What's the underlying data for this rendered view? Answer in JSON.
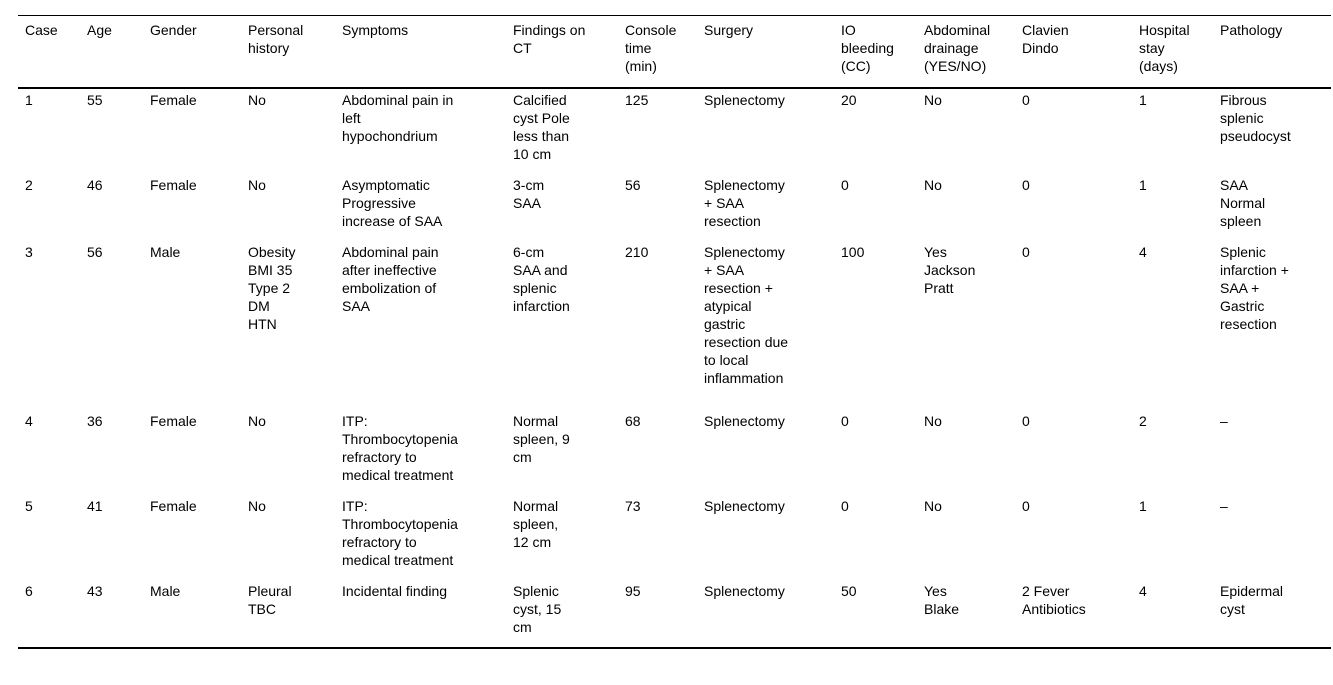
{
  "table": {
    "columns": [
      {
        "key": "case",
        "label_lines": [
          "Case"
        ]
      },
      {
        "key": "age",
        "label_lines": [
          "Age"
        ]
      },
      {
        "key": "gender",
        "label_lines": [
          "Gender"
        ]
      },
      {
        "key": "personal-history",
        "label_lines": [
          "Personal",
          "history"
        ]
      },
      {
        "key": "symptoms",
        "label_lines": [
          "Symptoms"
        ]
      },
      {
        "key": "findings-on-ct",
        "label_lines": [
          "Findings on",
          "CT"
        ]
      },
      {
        "key": "console-time",
        "label_lines": [
          "Console",
          "time",
          "(min)"
        ]
      },
      {
        "key": "surgery",
        "label_lines": [
          "Surgery"
        ]
      },
      {
        "key": "io-bleeding",
        "label_lines": [
          "IO",
          "bleeding",
          "(CC)"
        ]
      },
      {
        "key": "abdominal-drainage",
        "label_lines": [
          "Abdominal",
          "drainage",
          "(YES/NO)"
        ]
      },
      {
        "key": "clavien-dindo",
        "label_lines": [
          "Clavien",
          "Dindo"
        ]
      },
      {
        "key": "hospital-stay",
        "label_lines": [
          "Hospital",
          "stay",
          "(days)"
        ]
      },
      {
        "key": "pathology",
        "label_lines": [
          "Pathology"
        ]
      }
    ],
    "rows": [
      {
        "cells": [
          [
            "1"
          ],
          [
            "55"
          ],
          [
            "Female"
          ],
          [
            "No"
          ],
          [
            "Abdominal pain in",
            "left",
            "hypochondrium"
          ],
          [
            "Calcified",
            "cyst Pole",
            "less than",
            "10 cm"
          ],
          [
            "125"
          ],
          [
            "Splenectomy"
          ],
          [
            "20"
          ],
          [
            "No"
          ],
          [
            "0"
          ],
          [
            "1"
          ],
          [
            "Fibrous",
            "splenic",
            "pseudocyst"
          ]
        ]
      },
      {
        "cells": [
          [
            "2"
          ],
          [
            "46"
          ],
          [
            "Female"
          ],
          [
            "No"
          ],
          [
            "Asymptomatic",
            "Progressive",
            "increase of SAA"
          ],
          [
            "3-cm",
            "SAA"
          ],
          [
            "56"
          ],
          [
            "Splenectomy",
            "+ SAA",
            "resection"
          ],
          [
            "0"
          ],
          [
            "No"
          ],
          [
            "0"
          ],
          [
            "1"
          ],
          [
            "SAA",
            "Normal",
            "spleen"
          ]
        ]
      },
      {
        "cells": [
          [
            "3"
          ],
          [
            "56"
          ],
          [
            "Male"
          ],
          [
            "Obesity",
            "BMI 35",
            "Type 2",
            "DM",
            "HTN"
          ],
          [
            "Abdominal pain",
            "after ineffective",
            "embolization of",
            "SAA"
          ],
          [
            "6-cm",
            "SAA and",
            "splenic",
            "infarction"
          ],
          [
            "210"
          ],
          [
            "Splenectomy",
            "+ SAA",
            "resection +",
            "atypical",
            "gastric",
            "resection due",
            "to local",
            "inflammation"
          ],
          [
            "100"
          ],
          [
            "Yes",
            "Jackson",
            "Pratt"
          ],
          [
            "0"
          ],
          [
            "4"
          ],
          [
            "Splenic",
            "infarction +",
            "SAA +",
            "Gastric",
            "resection"
          ]
        ]
      },
      {
        "cells": [
          [
            "4"
          ],
          [
            "36"
          ],
          [
            "Female"
          ],
          [
            "No"
          ],
          [
            "ITP:",
            "Thrombocytopenia",
            "refractory to",
            "medical treatment"
          ],
          [
            "Normal",
            "spleen, 9",
            "cm"
          ],
          [
            "68"
          ],
          [
            "Splenectomy"
          ],
          [
            "0"
          ],
          [
            "No"
          ],
          [
            "0"
          ],
          [
            "2"
          ],
          [
            "–"
          ]
        ]
      },
      {
        "cells": [
          [
            "5"
          ],
          [
            "41"
          ],
          [
            "Female"
          ],
          [
            "No"
          ],
          [
            "ITP:",
            "Thrombocytopenia",
            "refractory to",
            "medical treatment"
          ],
          [
            "Normal",
            "spleen,",
            "12 cm"
          ],
          [
            "73"
          ],
          [
            "Splenectomy"
          ],
          [
            "0"
          ],
          [
            "No"
          ],
          [
            "0"
          ],
          [
            "1"
          ],
          [
            "–"
          ]
        ]
      },
      {
        "cells": [
          [
            "6"
          ],
          [
            "43"
          ],
          [
            "Male"
          ],
          [
            "Pleural",
            "TBC"
          ],
          [
            "Incidental finding"
          ],
          [
            "Splenic",
            "cyst, 15",
            "cm"
          ],
          [
            "95"
          ],
          [
            "Splenectomy"
          ],
          [
            "50"
          ],
          [
            "Yes",
            "Blake"
          ],
          [
            "2 Fever",
            "Antibiotics"
          ],
          [
            "4"
          ],
          [
            "Epidermal",
            "cyst"
          ]
        ]
      }
    ]
  }
}
